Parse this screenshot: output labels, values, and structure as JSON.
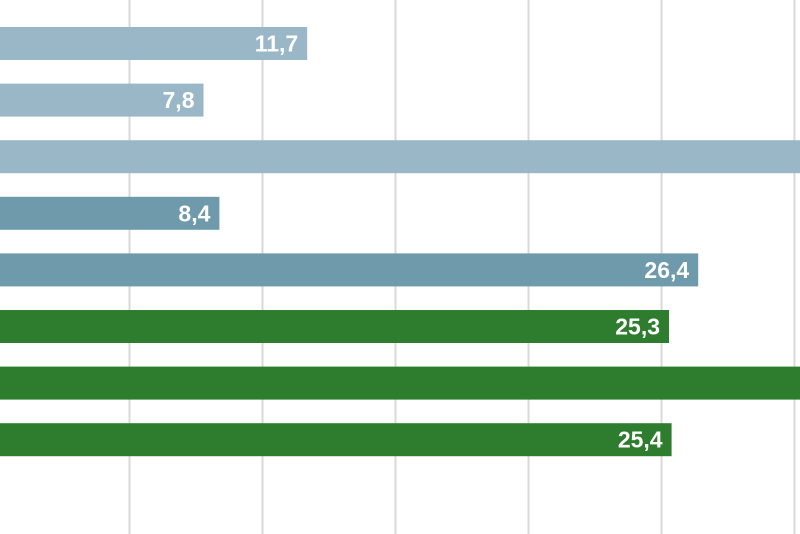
{
  "chart_data": {
    "type": "bar",
    "orientation": "horizontal",
    "grid": true,
    "xlim": [
      0,
      30
    ],
    "gridline_step": 5,
    "bars": [
      {
        "value": 11.7,
        "label": "11,7",
        "color": "#9ab7c7"
      },
      {
        "value": 7.8,
        "label": "7,8",
        "color": "#9ab7c7"
      },
      {
        "value": 30.5,
        "label": "",
        "color": "#9ab7c7"
      },
      {
        "value": 8.4,
        "label": "8,4",
        "color": "#6e9aab"
      },
      {
        "value": 26.4,
        "label": "26,4",
        "color": "#6e9aab"
      },
      {
        "value": 25.3,
        "label": "25,3",
        "color": "#2e7d2e"
      },
      {
        "value": 30.5,
        "label": "",
        "color": "#2e7d2e"
      },
      {
        "value": 25.4,
        "label": "25,4",
        "color": "#2e7d2e"
      }
    ]
  },
  "colors": {
    "gridline": "#d9d9d9",
    "label_text": "#ffffff",
    "background": "#ffffff"
  }
}
